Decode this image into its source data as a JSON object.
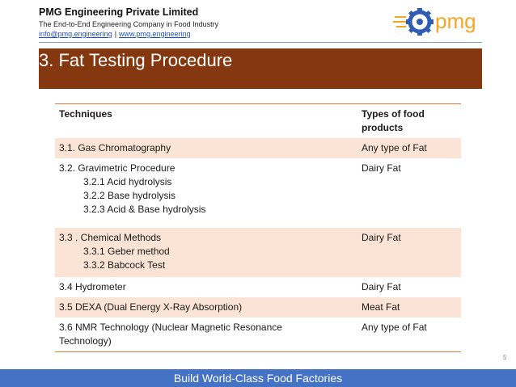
{
  "header": {
    "company": "PMG Engineering Private Limited",
    "tagline": "The End-to-End Engineering Company in Food Industry",
    "email": "info@pmg.engineering",
    "separator": "|",
    "website": "www.pmg.engineering",
    "logo_text": "pmg"
  },
  "title": "3. Fat Testing Procedure",
  "table": {
    "headers": [
      "Techniques",
      "Types of food products"
    ],
    "rows": [
      {
        "technique": "3.1. Gas Chromatography",
        "sub": [],
        "food": "Any type of Fat"
      },
      {
        "technique": "3.2. Gravimetric Procedure",
        "sub": [
          "3.2.1 Acid hydrolysis",
          "3.2.2 Base hydrolysis",
          "3.2.3 Acid & Base hydrolysis"
        ],
        "food": "Dairy Fat"
      },
      {
        "technique": "3.3 . Chemical Methods",
        "sub": [
          "3.3.1 Geber method",
          "3.3.2 Babcock Test"
        ],
        "food": "Dairy Fat"
      },
      {
        "technique": "3.4 Hydrometer",
        "sub": [],
        "food": "Dairy Fat"
      },
      {
        "technique": "3.5 DEXA (Dual Energy X-Ray Absorption)",
        "sub": [],
        "food": "Meat Fat"
      },
      {
        "technique": "3.6 NMR Technology (Nuclear Magnetic Resonance Technology)",
        "sub": [],
        "food": "Any type of Fat"
      }
    ]
  },
  "page_number": "5",
  "footer": "Build World-Class Food Factories",
  "colors": {
    "title_bar": "#85380f",
    "table_border": "#e07b39",
    "row_shade": "#fbe4d5",
    "footer_bar": "#4472c4",
    "logo_gear": "#2f5db3",
    "logo_text": "#f5a623"
  }
}
